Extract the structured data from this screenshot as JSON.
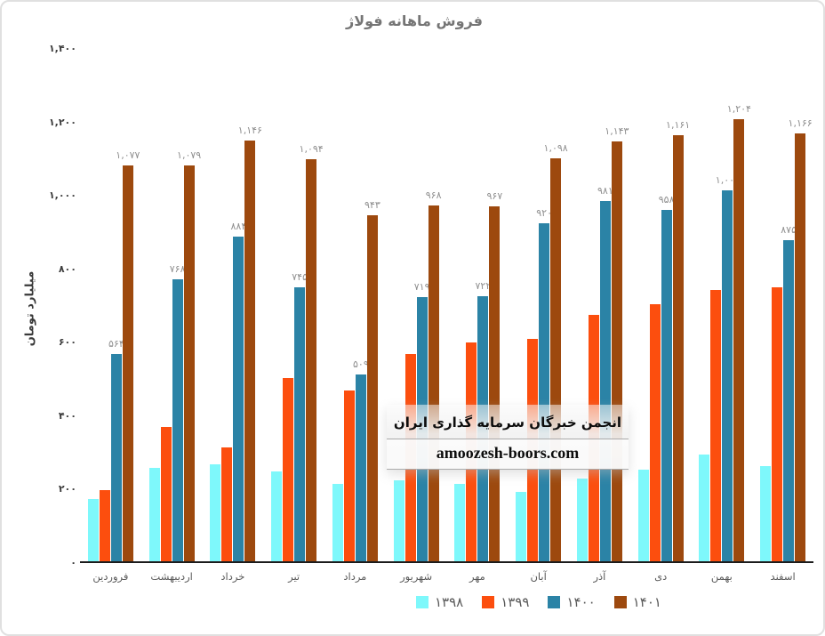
{
  "title": "فروش ماهانه فولاژ",
  "watermark": {
    "line1": "انجمن خبرگان سرمایه گذاری ایران",
    "line2": "amoozesh-boors.com"
  },
  "colors": {
    "series_1398": "#7EF8FB",
    "series_1399": "#FC4E0E",
    "series_1400": "#2B83A6",
    "series_1401": "#9D490E",
    "title_text": "#757575",
    "data_label": "#8f8f8f",
    "tick_label": "#3d3d3d",
    "month_label": "#595959",
    "axis_line": "#1c1c1c"
  },
  "chart_data": {
    "type": "bar",
    "title": "فروش ماهانه فولاژ",
    "xlabel": "",
    "ylabel": "میلیارد تومان",
    "grid": false,
    "legend_position": "bottom",
    "ylim": [
      0,
      1400
    ],
    "yticks": {
      "values": [
        0,
        200,
        400,
        600,
        800,
        1000,
        1200,
        1400
      ],
      "labels": [
        "۰",
        "۲۰۰",
        "۴۰۰",
        "۶۰۰",
        "۸۰۰",
        "۱,۰۰۰",
        "۱,۲۰۰",
        "۱,۴۰۰"
      ]
    },
    "categories": [
      "فروردین",
      "اردیبهشت",
      "خرداد",
      "تیر",
      "مرداد",
      "شهریور",
      "مهر",
      "آبان",
      "آذر",
      "دی",
      "بهمن",
      "اسفند"
    ],
    "categories_en": [
      "farvardin",
      "ordibehesht",
      "khordad",
      "tir",
      "mordad",
      "shahrivar",
      "mehr",
      "aban",
      "azar",
      "dey",
      "bahman",
      "esfand"
    ],
    "series": [
      {
        "name": "۱۳۹۸",
        "name_en": "1398",
        "color": "#7EF8FB",
        "values": [
          170,
          255,
          265,
          245,
          210,
          220,
          210,
          190,
          225,
          250,
          290,
          260
        ],
        "labels": null
      },
      {
        "name": "۱۳۹۹",
        "name_en": "1399",
        "color": "#FC4E0E",
        "values": [
          195,
          365,
          310,
          500,
          465,
          565,
          595,
          605,
          670,
          700,
          740,
          745
        ],
        "labels": null
      },
      {
        "name": "۱۴۰۰",
        "name_en": "1400",
        "color": "#2B83A6",
        "values": [
          564,
          768,
          884,
          745,
          509,
          719,
          722,
          920,
          981,
          958,
          1009,
          875
        ],
        "labels": [
          "۵۶۴",
          "۷۶۸",
          "۸۸۴",
          "۷۴۵",
          "۵۰۹",
          "۷۱۹",
          "۷۲۲",
          "۹۲۰",
          "۹۸۱",
          "۹۵۸",
          "۱,۰۰۹",
          "۸۷۵"
        ]
      },
      {
        "name": "۱۴۰۱",
        "name_en": "1401",
        "color": "#9D490E",
        "values": [
          1077,
          1079,
          1146,
          1094,
          943,
          968,
          967,
          1098,
          1143,
          1161,
          1204,
          1166
        ],
        "labels": [
          "۱,۰۷۷",
          "۱,۰۷۹",
          "۱,۱۴۶",
          "۱,۰۹۴",
          "۹۴۳",
          "۹۶۸",
          "۹۶۷",
          "۱,۰۹۸",
          "۱,۱۴۳",
          "۱,۱۶۱",
          "۱,۲۰۴",
          "۱,۱۶۶"
        ]
      }
    ]
  }
}
